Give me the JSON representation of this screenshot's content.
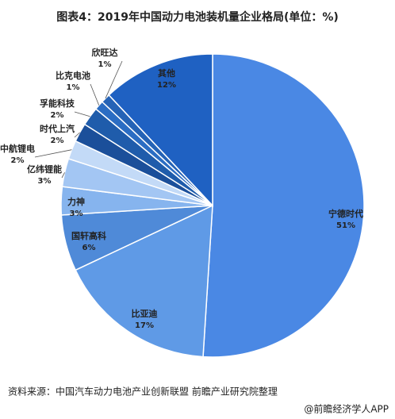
{
  "chart_data": {
    "type": "pie",
    "title": "图表4：2019年中国动力电池装机量企业格局(单位：%)",
    "categories": [
      "宁德时代",
      "比亚迪",
      "国轩高科",
      "力神",
      "亿纬锂能",
      "中航锂电",
      "时代上汽",
      "孚能科技",
      "比克电池",
      "欣旺达",
      "其他"
    ],
    "values": [
      51,
      17,
      6,
      3,
      3,
      2,
      2,
      2,
      1,
      1,
      12
    ],
    "value_labels": [
      "51%",
      "17%",
      "6%",
      "3%",
      "3%",
      "2%",
      "2%",
      "2%",
      "1%",
      "1%",
      "12%"
    ],
    "colors": [
      "#4a88e4",
      "#5f9ae6",
      "#4f8ad8",
      "#86b4ee",
      "#a3c6f3",
      "#c3daf7",
      "#1b4f9a",
      "#1f5cab",
      "#2b6dc3",
      "#2563b6",
      "#1f61c2"
    ],
    "source": "资料来源：中国汽车动力电池产业创新联盟  前瞻产业研究院整理",
    "brand": "@前瞻经济学人APP"
  }
}
